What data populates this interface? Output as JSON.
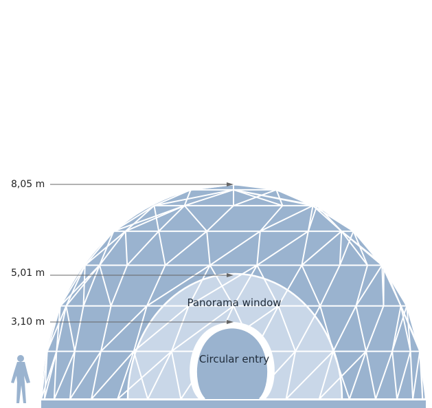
{
  "diagram": {
    "heights": [
      {
        "label": "8,05 m"
      },
      {
        "label": "5,01 m"
      },
      {
        "label": "3,10 m"
      }
    ],
    "panorama_label": "Panorama window",
    "entry_label": "Circular entry",
    "colors": {
      "dome_fill": "#9ab3cf",
      "panorama_fill": "#c9d7e8",
      "entry_fill": "#9ab3cf",
      "strut": "#ffffff",
      "leader": "#666666",
      "base": "#9ab3cf",
      "person": "#9ab3cf"
    }
  }
}
